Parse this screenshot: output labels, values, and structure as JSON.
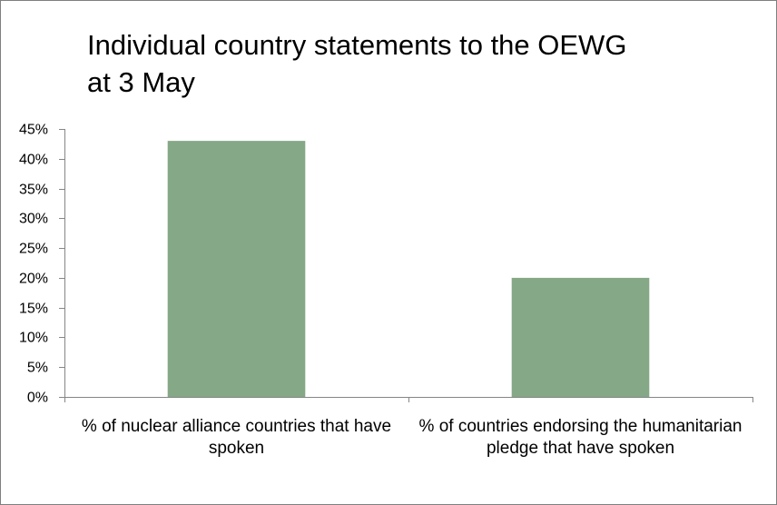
{
  "chart_data": {
    "type": "bar",
    "title": "Individual country statements to the OEWG at 3 May",
    "categories": [
      "% of nuclear alliance countries that have spoken",
      "% of countries endorsing the humanitarian pledge that have spoken"
    ],
    "values": [
      43,
      20
    ],
    "ylim": [
      0,
      45
    ],
    "yticks": [
      "0%",
      "5%",
      "10%",
      "15%",
      "20%",
      "25%",
      "30%",
      "35%",
      "40%",
      "45%"
    ],
    "xlabel": "",
    "ylabel": "",
    "grid": false,
    "legend": "none",
    "bar_color": "#85a886"
  }
}
